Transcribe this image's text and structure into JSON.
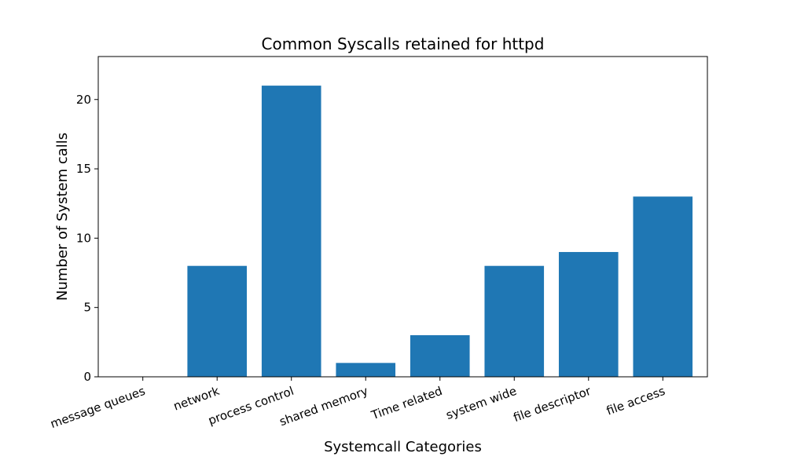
{
  "chart_data": {
    "type": "bar",
    "title": "Common Syscalls retained for httpd",
    "xlabel": "Systemcall Categories",
    "ylabel": "Number of System calls",
    "categories": [
      "message queues",
      "network",
      "process control",
      "shared memory",
      "Time related",
      "system wide",
      "file descriptor",
      "file access"
    ],
    "values": [
      0,
      8,
      21,
      1,
      3,
      8,
      9,
      13
    ],
    "ylim": [
      0,
      23.1
    ],
    "yticks": [
      0,
      5,
      10,
      15,
      20
    ],
    "bar_color": "#1f77b4",
    "grid": false,
    "legend": "none"
  }
}
